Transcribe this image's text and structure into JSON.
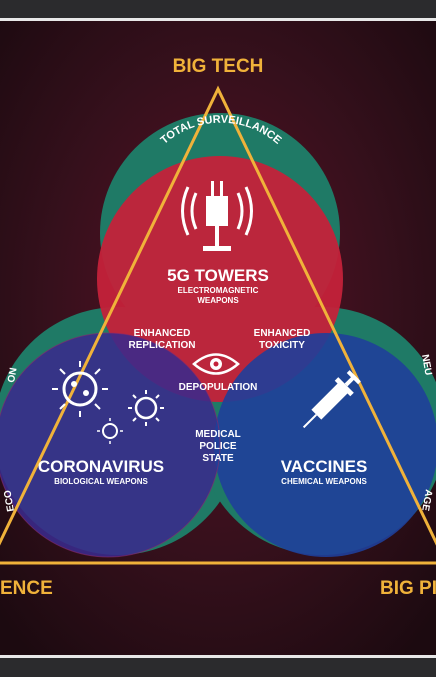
{
  "corners": {
    "top": "BIG TECH",
    "bottom_left": "ENCE",
    "bottom_right": "BIG PI"
  },
  "ring_labels": {
    "top_arc": "TOTAL SURVEILLANCE",
    "left_top": "ON",
    "left_bottom": "ECO",
    "right_top": "NEU",
    "right_bottom": "AGE"
  },
  "circles": {
    "top": {
      "title": "5G TOWERS",
      "sub1": "ELECTROMAGNETIC",
      "sub2": "WEAPONS"
    },
    "left": {
      "title": "CORONAVIRUS",
      "sub": "BIOLOGICAL WEAPONS"
    },
    "right": {
      "title": "VACCINES",
      "sub": "CHEMICAL WEAPONS"
    }
  },
  "overlaps": {
    "top_left_1": "ENHANCED",
    "top_left_2": "REPLICATION",
    "top_right_1": "ENHANCED",
    "top_right_2": "TOXICITY",
    "center": "DEPOPULATION",
    "bottom_1": "MEDICAL",
    "bottom_2": "POLICE",
    "bottom_3": "STATE"
  },
  "colors": {
    "red": "#c4223a",
    "blue": "#1f3f9a",
    "teal": "#1f7a66",
    "gold": "#f0b23a"
  },
  "icons": [
    "radio-tower-icon",
    "virus-icon",
    "syringe-icon",
    "eye-icon"
  ]
}
